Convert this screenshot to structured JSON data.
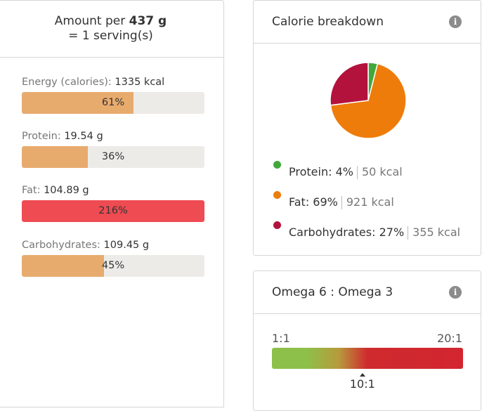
{
  "amount": {
    "prefix": "Amount per",
    "weight": "437 g",
    "serving": "= 1 serving(s)"
  },
  "nutrients": [
    {
      "name": "Energy (calories):",
      "value": "1335 kcal",
      "percent_label": "61%",
      "percent": 61,
      "color": "#e8ab6e"
    },
    {
      "name": "Protein:",
      "value": "19.54 g",
      "percent_label": "36%",
      "percent": 36,
      "color": "#e8ab6e"
    },
    {
      "name": "Fat:",
      "value": "104.89 g",
      "percent_label": "216%",
      "percent": 216,
      "color": "#ef4b52"
    },
    {
      "name": "Carbohydrates:",
      "value": "109.45 g",
      "percent_label": "45%",
      "percent": 45,
      "color": "#e8ab6e"
    }
  ],
  "calorie_breakdown": {
    "title": "Calorie breakdown",
    "info_icon": "i",
    "items": [
      {
        "name": "Protein:",
        "pct": "4%",
        "kcal": "50 kcal",
        "value": 4,
        "color": "#41a83b"
      },
      {
        "name": "Fat:",
        "pct": "69%",
        "kcal": "921 kcal",
        "value": 69,
        "color": "#ee7c0a"
      },
      {
        "name": "Carbohydrates:",
        "pct": "27%",
        "kcal": "355 kcal",
        "value": 27,
        "color": "#b3123d"
      }
    ]
  },
  "omega": {
    "title": "Omega 6 : Omega 3",
    "info_icon": "i",
    "min_label": "1:1",
    "max_label": "20:1",
    "value_label": "10:1",
    "value": 10,
    "min": 1,
    "max": 20
  }
}
